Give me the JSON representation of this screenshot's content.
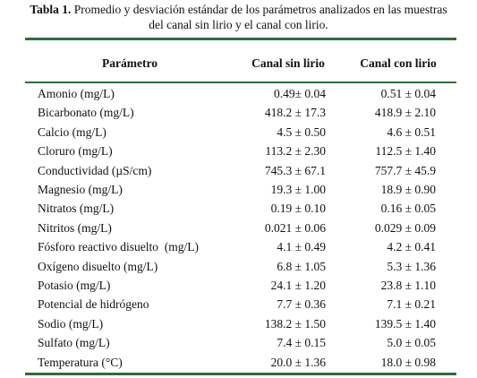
{
  "caption": {
    "label": "Tabla 1.",
    "text_line1": "Promedio y desviación estándar de los parámetros analizados en las muestras",
    "text_line2": "del canal sin lirio y el canal con lirio."
  },
  "table": {
    "header": [
      "Parámetro",
      "Canal sin lirio",
      "Canal con lirio"
    ],
    "rows": [
      [
        "Amonio (mg/L)",
        "0.49± 0.04",
        "0.51 ± 0.04"
      ],
      [
        "Bicarbonato (mg/L)",
        "418.2 ± 17.3",
        "418.9 ± 2.10"
      ],
      [
        "Calcio (mg/L)",
        "4.5 ± 0.50",
        "4.6 ± 0.51"
      ],
      [
        "Cloruro (mg/L)",
        "113.2 ± 2.30",
        "112.5 ± 1.40"
      ],
      [
        "Conductividad (µS/cm)",
        "745.3 ± 67.1",
        "757.7 ± 45.9"
      ],
      [
        "Magnesio (mg/L)",
        "19.3 ± 1.00",
        "18.9 ± 0.90"
      ],
      [
        "Nitratos (mg/L)",
        "0.19 ± 0.10",
        "0.16 ± 0.05"
      ],
      [
        "Nitritos (mg/L)",
        "0.021 ± 0.06",
        "0.029 ± 0.09"
      ],
      [
        "Fósforo reactivo disuelto  (mg/L)",
        "4.1 ± 0.49",
        "4.2 ± 0.41"
      ],
      [
        "Oxígeno disuelto (mg/L)",
        "6.8 ± 1.05",
        "5.3 ± 1.36"
      ],
      [
        "Potasio (mg/L)",
        "24.1 ± 1.20",
        "23.8 ± 1.10"
      ],
      [
        "Potencial de hidrógeno",
        "7.7 ± 0.36",
        "7.1 ± 0.21"
      ],
      [
        "Sodio (mg/L)",
        "138.2 ± 1.50",
        "139.5 ± 1.40"
      ],
      [
        "Sulfato (mg/L)",
        "7.4 ± 0.15",
        "5.0 ± 0.05"
      ],
      [
        "Temperatura (°C)",
        "20.0 ± 1.36",
        "18.0 ± 0.98"
      ]
    ]
  }
}
